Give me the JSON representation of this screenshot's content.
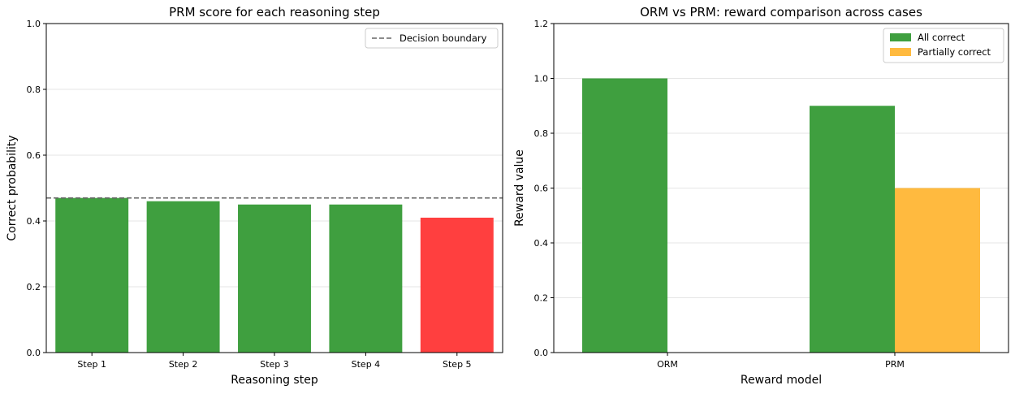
{
  "chart_data": [
    {
      "type": "bar",
      "title": "PRM score for each reasoning step",
      "xlabel": "Reasoning step",
      "ylabel": "Correct probability",
      "ylim": [
        0,
        1.0
      ],
      "yticks": [
        "0.0",
        "0.2",
        "0.4",
        "0.6",
        "0.8",
        "1.0"
      ],
      "grid": "y",
      "categories": [
        "Step 1",
        "Step 2",
        "Step 3",
        "Step 4",
        "Step 5"
      ],
      "values": [
        0.47,
        0.46,
        0.45,
        0.45,
        0.41
      ],
      "bar_colors": [
        "#3f9f3f",
        "#3f9f3f",
        "#3f9f3f",
        "#3f9f3f",
        "#ff3f3f"
      ],
      "reference_line": {
        "value": 0.47,
        "label": "Decision boundary",
        "color": "#666666",
        "style": "dashed"
      },
      "legend": {
        "placement": "top-right",
        "entries": [
          "Decision boundary"
        ]
      }
    },
    {
      "type": "bar",
      "title": "ORM vs PRM: reward comparison across cases",
      "xlabel": "Reward model",
      "ylabel": "Reward value",
      "ylim": [
        0,
        1.2
      ],
      "yticks": [
        "0.0",
        "0.2",
        "0.4",
        "0.6",
        "0.8",
        "1.0",
        "1.2"
      ],
      "grid": "y",
      "categories": [
        "ORM",
        "PRM"
      ],
      "series": [
        {
          "name": "All correct",
          "values": [
            1.0,
            0.9
          ],
          "color": "#3f9f3f"
        },
        {
          "name": "Partially correct",
          "values": [
            0.0,
            0.6
          ],
          "color": "#ffba3f"
        }
      ],
      "legend": {
        "placement": "top-right"
      }
    }
  ]
}
